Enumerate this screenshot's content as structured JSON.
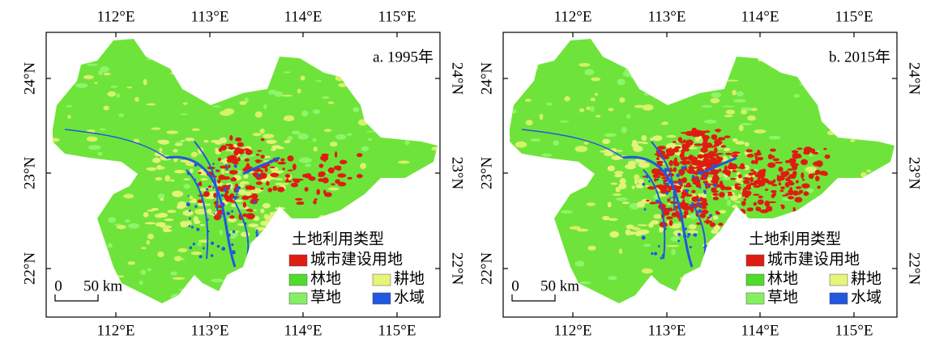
{
  "panels": [
    {
      "label": "a. 1995年"
    },
    {
      "label": "b. 2015年"
    }
  ],
  "lon_ticks": [
    "112°E",
    "113°E",
    "114°E",
    "115°E"
  ],
  "lat_ticks": [
    "24°N",
    "23°N",
    "22°N"
  ],
  "legend": {
    "title": "土地利用类型",
    "items": [
      "城市建设用地",
      "林地",
      "耕地",
      "草地",
      "水域"
    ]
  },
  "scale_bar": {
    "zero": "0",
    "label": "50 km"
  }
}
